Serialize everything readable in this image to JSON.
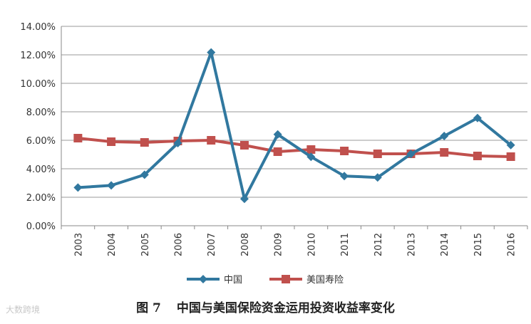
{
  "chart_data": {
    "type": "line",
    "categories": [
      "2003",
      "2004",
      "2005",
      "2006",
      "2007",
      "2008",
      "2009",
      "2010",
      "2011",
      "2012",
      "2013",
      "2014",
      "2015",
      "2016"
    ],
    "series": [
      {
        "name": "中国",
        "color": "#31789f",
        "marker": "diamond",
        "values": [
          2.68,
          2.83,
          3.58,
          5.8,
          12.17,
          1.89,
          6.41,
          4.84,
          3.49,
          3.39,
          5.04,
          6.3,
          7.56,
          5.66
        ]
      },
      {
        "name": "美国寿险",
        "color": "#c0504d",
        "marker": "square",
        "values": [
          6.15,
          5.9,
          5.85,
          5.95,
          6.0,
          5.65,
          5.2,
          5.35,
          5.25,
          5.05,
          5.05,
          5.15,
          4.9,
          4.85
        ]
      }
    ],
    "ylim": [
      0,
      14
    ],
    "yticks": [
      "0.00%",
      "2.00%",
      "4.00%",
      "6.00%",
      "8.00%",
      "10.00%",
      "12.00%",
      "14.00%"
    ],
    "ytick_values": [
      0,
      2,
      4,
      6,
      8,
      10,
      12,
      14
    ],
    "grid": true,
    "legend": "bottom"
  },
  "caption": {
    "figure_number": "图 7",
    "title": "中国与美国保险资金运用投资收益率变化"
  },
  "watermark": "大数跨境"
}
